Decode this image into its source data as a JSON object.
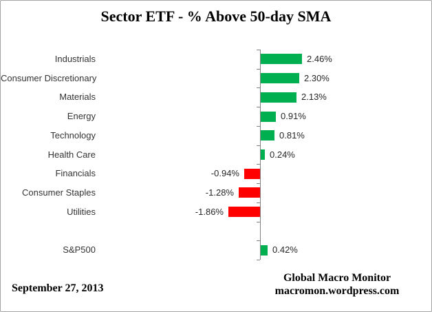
{
  "title": "Sector ETF - % Above 50-day SMA",
  "footer": {
    "date": "September 27, 2013",
    "brand_line1": "Global Macro Monitor",
    "brand_line2": "macromon.wordpress.com"
  },
  "colors": {
    "positive_bar": "#00B050",
    "negative_bar": "#FF0000",
    "axis": "#808080",
    "frame_border": "#A3A3A3",
    "label_text": "#262626"
  },
  "chart_data": {
    "type": "bar",
    "orientation": "horizontal",
    "title": "Sector ETF - % Above 50-day SMA",
    "unit": "%",
    "categories": [
      "Industrials",
      "Consumer Discretionary",
      "Materials",
      "Energy",
      "Technology",
      "Health Care",
      "Financials",
      "Consumer Staples",
      "Utilities",
      "S&P500"
    ],
    "values": [
      2.46,
      2.3,
      2.13,
      0.91,
      0.81,
      0.24,
      -0.94,
      -1.28,
      -1.86,
      0.42
    ],
    "value_labels": [
      "2.46%",
      "2.30%",
      "2.13%",
      "0.91%",
      "0.81%",
      "0.24%",
      "-0.94%",
      "-1.28%",
      "-1.86%",
      "0.42%"
    ],
    "separator_gap_before": "S&P500",
    "positive_color": "#00B050",
    "negative_color": "#FF0000",
    "xlim": [
      -2.5,
      3.0
    ],
    "grid": false,
    "legend": false,
    "data_labels": "outside-end"
  }
}
